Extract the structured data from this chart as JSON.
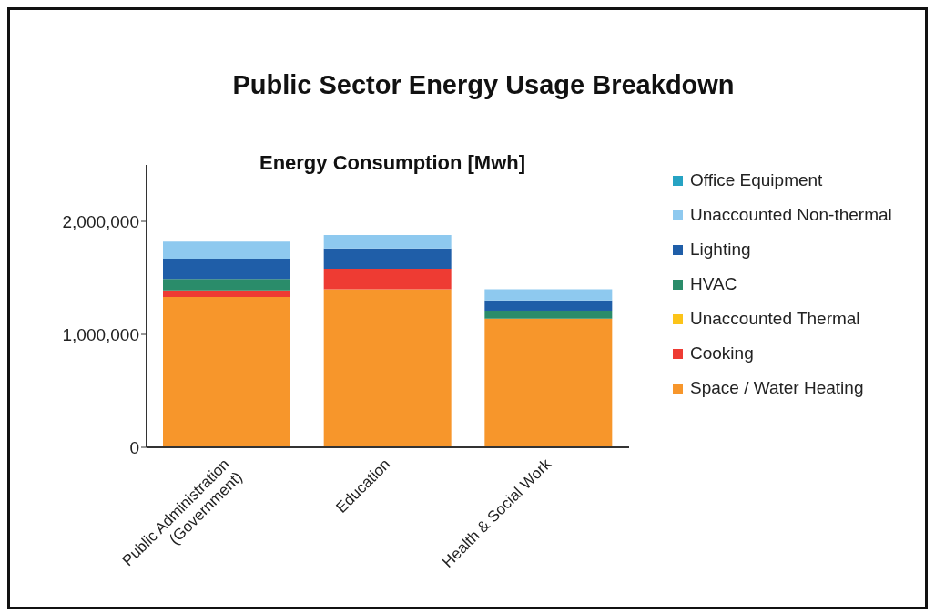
{
  "chart_data": {
    "type": "bar",
    "title": "Public Sector Energy Usage Breakdown",
    "subtitle": "Energy Consumption [Mwh]",
    "stacked": true,
    "legend": "right",
    "grid": false,
    "categories": [
      "Public Administration (Government)",
      "Education",
      "Health & Social Work"
    ],
    "ylim": [
      0,
      2500000
    ],
    "yticks": [
      0,
      {
        "value": 1000000,
        "label": "1,000,000"
      },
      {
        "value": 2000000,
        "label": "2,000,000"
      }
    ],
    "series": [
      {
        "name": "Space / Water Heating",
        "color": "#f7962b",
        "values": [
          1330000,
          1400000,
          1140000
        ]
      },
      {
        "name": "Cooking",
        "color": "#ee3b33",
        "values": [
          60000,
          180000,
          null
        ]
      },
      {
        "name": "Unaccounted Thermal",
        "color": "#fcc419",
        "values": [
          null,
          null,
          null
        ]
      },
      {
        "name": "HVAC",
        "color": "#2a8c6a",
        "values": [
          100000,
          null,
          70000
        ]
      },
      {
        "name": "Lighting",
        "color": "#1f5ea8",
        "values": [
          180000,
          180000,
          90000
        ]
      },
      {
        "name": "Unaccounted Non-thermal",
        "color": "#8ec9ef",
        "values": [
          150000,
          120000,
          100000
        ]
      },
      {
        "name": "Office Equipment",
        "color": "#26a3c3",
        "values": [
          null,
          null,
          null
        ]
      }
    ]
  }
}
